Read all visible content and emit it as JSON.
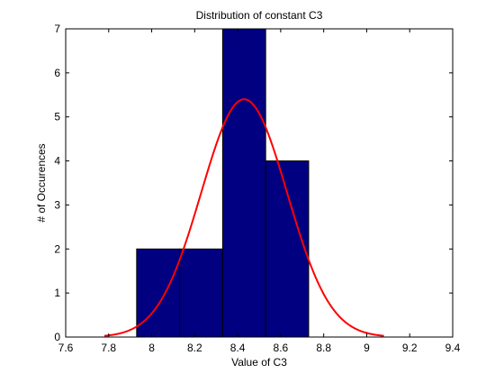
{
  "chart_data": {
    "type": "bar",
    "title": "Distribution of constant C3",
    "xlabel": "Value of C3",
    "ylabel": "# of Occurences",
    "xlim": [
      7.6,
      9.4
    ],
    "ylim": [
      0,
      7
    ],
    "xticks": [
      "7.6",
      "7.8",
      "8",
      "8.2",
      "8.4",
      "8.6",
      "8.8",
      "9",
      "9.2",
      "9.4"
    ],
    "yticks": [
      "0",
      "1",
      "2",
      "3",
      "4",
      "5",
      "6",
      "7"
    ],
    "grid": false,
    "histogram": {
      "name": "",
      "color": "#000080",
      "bins": [
        {
          "x0": 7.93,
          "x1": 8.13,
          "count": 2
        },
        {
          "x0": 8.13,
          "x1": 8.33,
          "count": 2
        },
        {
          "x0": 8.33,
          "x1": 8.53,
          "count": 7
        },
        {
          "x0": 8.53,
          "x1": 8.73,
          "count": 4
        }
      ]
    },
    "fit_curve": {
      "name": "",
      "type": "line",
      "distribution": "normal",
      "color": "#ff0000",
      "mean": 8.43,
      "sd": 0.2,
      "peak": 5.4,
      "x_range": [
        7.78,
        9.08
      ]
    }
  }
}
